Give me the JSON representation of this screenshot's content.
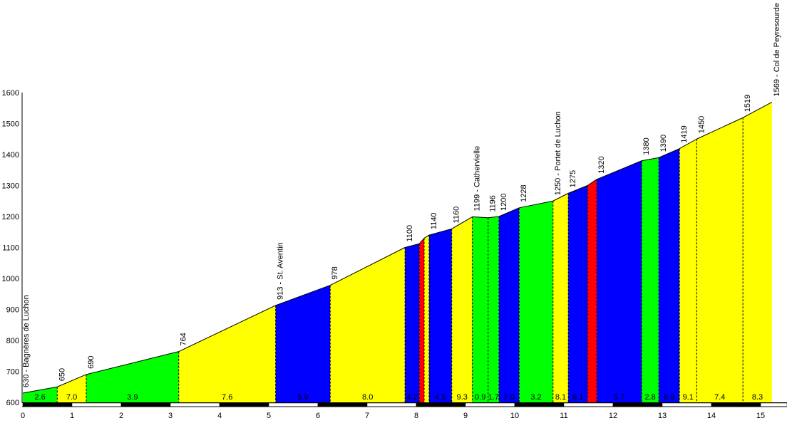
{
  "chart_data": {
    "type": "area",
    "title": "",
    "xlabel": "",
    "ylabel": "",
    "xlim": [
      0,
      15.5
    ],
    "ylim": [
      600,
      1600
    ],
    "x_ticks": [
      0,
      1,
      2,
      3,
      4,
      5,
      6,
      7,
      8,
      9,
      10,
      11,
      12,
      13,
      14,
      15
    ],
    "y_ticks": [
      600,
      700,
      800,
      900,
      1000,
      1100,
      1200,
      1300,
      1400,
      1500,
      1600
    ],
    "points": [
      {
        "km": 0,
        "elev": 630,
        "label": "630 - Bagnères de Luchon"
      },
      {
        "km": 0.7,
        "elev": 650,
        "label": "650"
      },
      {
        "km": 1.29,
        "elev": 690,
        "label": "690"
      },
      {
        "km": 3.17,
        "elev": 764,
        "label": "764"
      },
      {
        "km": 5.14,
        "elev": 913,
        "label": "913 - St. Aventin"
      },
      {
        "km": 6.25,
        "elev": 978,
        "label": "978"
      },
      {
        "km": 7.77,
        "elev": 1100,
        "label": "1100"
      },
      {
        "km": 8.06,
        "elev": 1112,
        "label": ""
      },
      {
        "km": 8.16,
        "elev": 1130,
        "label": ""
      },
      {
        "km": 8.26,
        "elev": 1140,
        "label": "1140"
      },
      {
        "km": 8.72,
        "elev": 1160,
        "label": "1160"
      },
      {
        "km": 9.14,
        "elev": 1199,
        "label": "1199 - Cathervielle"
      },
      {
        "km": 9.46,
        "elev": 1196,
        "label": "1196"
      },
      {
        "km": 9.68,
        "elev": 1200,
        "label": "1200"
      },
      {
        "km": 10.09,
        "elev": 1228,
        "label": "1228"
      },
      {
        "km": 10.78,
        "elev": 1250,
        "label": "1250 - Portet de Luchon"
      },
      {
        "km": 11.09,
        "elev": 1275,
        "label": "1275"
      },
      {
        "km": 11.48,
        "elev": 1300,
        "label": ""
      },
      {
        "km": 11.67,
        "elev": 1320,
        "label": "1320"
      },
      {
        "km": 12.58,
        "elev": 1380,
        "label": "1380"
      },
      {
        "km": 12.93,
        "elev": 1390,
        "label": "1390"
      },
      {
        "km": 13.35,
        "elev": 1419,
        "label": "1419"
      },
      {
        "km": 13.7,
        "elev": 1450,
        "label": "1450"
      },
      {
        "km": 14.64,
        "elev": 1519,
        "label": "1519"
      },
      {
        "km": 15.23,
        "elev": 1569,
        "label": "1569 - Col de Peyresourde"
      }
    ],
    "segments": [
      {
        "grad": "2.6",
        "color": "#00ff00"
      },
      {
        "grad": "7.0",
        "color": "#ffff00"
      },
      {
        "grad": "3.9",
        "color": "#00ff00"
      },
      {
        "grad": "7.6",
        "color": "#ffff00"
      },
      {
        "grad": "5.9",
        "color": "#0000ff"
      },
      {
        "grad": "8.0",
        "color": "#ffff00"
      },
      {
        "grad": "4.2",
        "color": "#0000ff"
      },
      {
        "grad": "",
        "color": "#ff0000"
      },
      {
        "grad": "",
        "color": "#ffff00"
      },
      {
        "grad": "4.5",
        "color": "#0000ff"
      },
      {
        "grad": "9.3",
        "color": "#ffff00"
      },
      {
        "grad": "0.9",
        "color": "#00ff00"
      },
      {
        "grad": "1.7",
        "color": "#00ff00"
      },
      {
        "grad": "7.0",
        "color": "#0000ff"
      },
      {
        "grad": "3.2",
        "color": "#00ff00"
      },
      {
        "grad": "8.1",
        "color": "#ffff00"
      },
      {
        "grad": "6.1",
        "color": "#0000ff"
      },
      {
        "grad": "",
        "color": "#ff0000"
      },
      {
        "grad": "5.7",
        "color": "#0000ff"
      },
      {
        "grad": "2.8",
        "color": "#00ff00"
      },
      {
        "grad": "6.9",
        "color": "#0000ff"
      },
      {
        "grad": "9.1",
        "color": "#ffff00"
      },
      {
        "grad": "7.4",
        "color": "#ffff00"
      },
      {
        "grad": "8.3",
        "color": "#ffff00"
      }
    ]
  }
}
